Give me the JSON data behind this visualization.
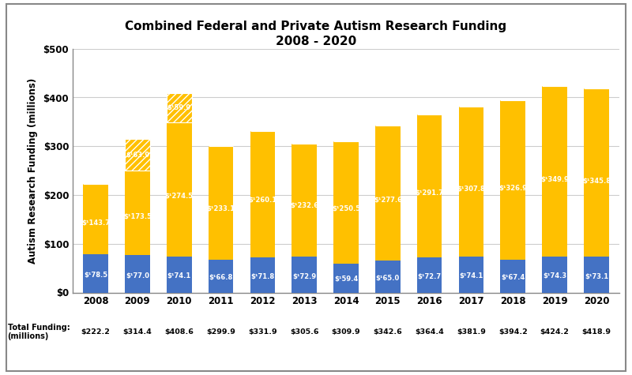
{
  "years": [
    "2008",
    "2009",
    "2010",
    "2011",
    "2012",
    "2013",
    "2014",
    "2015",
    "2016",
    "2017",
    "2018",
    "2019",
    "2020"
  ],
  "private": [
    78.5,
    77.0,
    74.1,
    66.8,
    71.8,
    72.9,
    59.4,
    65.0,
    72.7,
    74.1,
    67.4,
    74.3,
    73.1
  ],
  "federal": [
    143.7,
    173.5,
    274.5,
    233.1,
    260.1,
    232.6,
    250.5,
    277.6,
    291.7,
    307.8,
    326.9,
    349.9,
    345.8
  ],
  "arra": [
    0,
    63.9,
    59.9,
    0,
    0,
    0,
    0,
    0,
    0,
    0,
    0,
    0,
    0
  ],
  "totals": [
    "$222.2",
    "$314.4",
    "$408.6",
    "$299.9",
    "$331.9",
    "$305.6",
    "$309.9",
    "$342.6",
    "$364.4",
    "$381.9",
    "$394.2",
    "$424.2",
    "$418.9"
  ],
  "private_color": "#4472C4",
  "federal_color": "#FFC000",
  "arra_color": "#FFC000",
  "title_line1": "Combined Federal and Private Autism Research Funding",
  "title_line2": "2008 - 2020",
  "ylabel": "Autism Research Funding (millions)",
  "xlabel_label": "Total Funding:\n(millions)",
  "ylim": [
    0,
    500
  ],
  "yticks": [
    0,
    100,
    200,
    300,
    400,
    500
  ],
  "ytick_labels": [
    "$0",
    "$100",
    "$200",
    "$300",
    "$400",
    "$500"
  ],
  "background_color": "#ffffff",
  "plot_bg_color": "#ffffff",
  "border_color": "#aaaaaa",
  "grid_color": "#cccccc",
  "label_fontsize": 6.0,
  "tick_fontsize": 8.5,
  "title_fontsize": 11,
  "ylabel_fontsize": 8.5
}
